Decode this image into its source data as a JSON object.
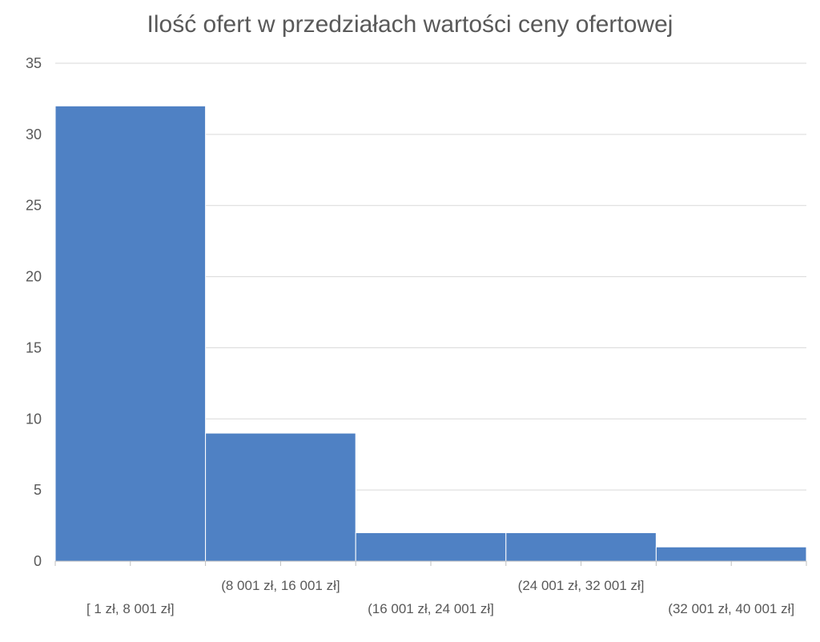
{
  "chart_data": {
    "type": "bar",
    "title": "Ilość ofert w przedziałach wartości ceny ofertowej",
    "xlabel": "",
    "ylabel": "",
    "categories": [
      "[ 1 zł, 8 001 zł]",
      "(8 001 zł, 16 001 zł]",
      "(16 001 zł, 24 001 zł]",
      "(24 001 zł, 32 001 zł]",
      "(32 001 zł, 40 001 zł]"
    ],
    "values": [
      32,
      9,
      2,
      2,
      1
    ],
    "ylim": [
      0,
      35
    ],
    "yticks": [
      "0",
      "5",
      "10",
      "15",
      "20",
      "25",
      "30",
      "35"
    ],
    "grid": true,
    "legend": "none",
    "colors": {
      "bar": "#4f81c4",
      "bar_edge": "#ffffff",
      "grid": "#d9d9d9",
      "axis": "#bfbfbf",
      "text": "#595959"
    }
  }
}
